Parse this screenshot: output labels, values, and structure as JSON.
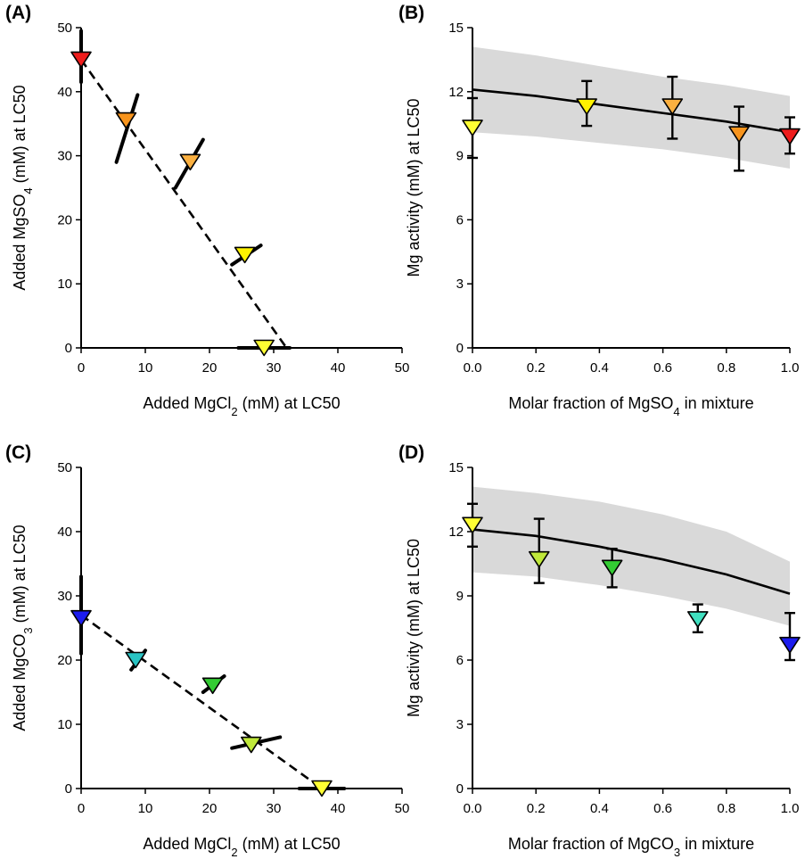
{
  "figure": {
    "panels": [
      {
        "id": "A",
        "panel_label": "(A)",
        "ylabel": "Added MgSO₄ (mM) at LC50",
        "xlabel": "Added MgCl₂ (mM) at LC50"
      },
      {
        "id": "B",
        "panel_label": "(B)",
        "ylabel": "Mg activity (mM) at LC50",
        "xlabel": "Molar fraction of MgSO₄ in mixture"
      },
      {
        "id": "C",
        "panel_label": "(C)",
        "ylabel": "Added MgCO₃ (mM) at LC50",
        "xlabel": "Added MgCl₂ (mM) at LC50"
      },
      {
        "id": "D",
        "panel_label": "(D)",
        "ylabel": "Mg activity (mM) at LC50",
        "xlabel": "Molar fraction of MgCO₃ in mixture"
      }
    ]
  },
  "chart_data": [
    {
      "panel": "A",
      "type": "scatter",
      "xlabel": "Added MgCl₂ (mM) at LC50",
      "ylabel": "Added MgSO₄ (mM) at LC50",
      "xlim": [
        0,
        50
      ],
      "ylim": [
        0,
        50
      ],
      "xticks": [
        0,
        10,
        20,
        30,
        40,
        50
      ],
      "yticks": [
        0,
        10,
        20,
        30,
        40,
        50
      ],
      "marker": "triangle-down",
      "points": [
        {
          "x": 0,
          "y": 45,
          "color": "#ee1c1c",
          "interval": [
            [
              0,
              41.5
            ],
            [
              0,
              49.5
            ]
          ]
        },
        {
          "x": 7,
          "y": 35.5,
          "color": "#f7941d",
          "interval": [
            [
              5.5,
              29
            ],
            [
              8.8,
              39.5
            ]
          ]
        },
        {
          "x": 17,
          "y": 29,
          "color": "#fbb040",
          "interval": [
            [
              14.7,
              25
            ],
            [
              19,
              32.5
            ]
          ]
        },
        {
          "x": 25.5,
          "y": 14.5,
          "color": "#fff200",
          "interval": [
            [
              23.5,
              13
            ],
            [
              28,
              16
            ]
          ]
        },
        {
          "x": 28.5,
          "y": 0,
          "color": "#ffff33",
          "interval": [
            [
              24.5,
              0
            ],
            [
              32.5,
              0
            ]
          ]
        }
      ],
      "reference_line": {
        "style": "dashed",
        "from": [
          0,
          45
        ],
        "to": [
          32,
          0
        ]
      }
    },
    {
      "panel": "B",
      "type": "scatter",
      "xlabel": "Molar fraction of MgSO₄ in mixture",
      "ylabel": "Mg activity (mM) at LC50",
      "xlim": [
        0,
        1
      ],
      "ylim": [
        0,
        15
      ],
      "xticks": [
        "0.0",
        "0.2",
        "0.4",
        "0.6",
        "0.8",
        "1.0"
      ],
      "yticks": [
        0,
        3,
        6,
        9,
        12,
        15
      ],
      "marker": "triangle-down",
      "points": [
        {
          "x": 0.0,
          "y": 10.3,
          "low": 8.9,
          "high": 11.7,
          "color": "#ffff33"
        },
        {
          "x": 0.36,
          "y": 11.3,
          "low": 10.4,
          "high": 12.5,
          "color": "#fff200"
        },
        {
          "x": 0.63,
          "y": 11.3,
          "low": 9.8,
          "high": 12.7,
          "color": "#fbb040"
        },
        {
          "x": 0.84,
          "y": 10.0,
          "low": 8.3,
          "high": 11.3,
          "color": "#f7941d"
        },
        {
          "x": 1.0,
          "y": 9.9,
          "low": 9.1,
          "high": 10.8,
          "color": "#ee1c1c"
        }
      ],
      "model_line": {
        "x": [
          0,
          0.2,
          0.4,
          0.6,
          0.8,
          1.0
        ],
        "y": [
          12.1,
          11.8,
          11.4,
          11.0,
          10.6,
          10.1
        ]
      },
      "band": {
        "x": [
          0,
          0.2,
          0.4,
          0.6,
          0.8,
          1.0
        ],
        "upper": [
          14.1,
          13.7,
          13.2,
          12.7,
          12.3,
          11.8
        ],
        "lower": [
          10.1,
          9.9,
          9.6,
          9.3,
          8.9,
          8.4
        ]
      }
    },
    {
      "panel": "C",
      "type": "scatter",
      "xlabel": "Added MgCl₂ (mM) at LC50",
      "ylabel": "Added MgCO₃ (mM) at LC50",
      "xlim": [
        0,
        50
      ],
      "ylim": [
        0,
        50
      ],
      "xticks": [
        0,
        10,
        20,
        30,
        40,
        50
      ],
      "yticks": [
        0,
        10,
        20,
        30,
        40,
        50
      ],
      "marker": "triangle-down",
      "points": [
        {
          "x": 0,
          "y": 26.5,
          "color": "#1c1cee",
          "interval": [
            [
              0,
              21
            ],
            [
              0,
              33
            ]
          ]
        },
        {
          "x": 8.5,
          "y": 20,
          "color": "#29c3c3",
          "interval": [
            [
              7.8,
              18.5
            ],
            [
              10,
              21.5
            ]
          ]
        },
        {
          "x": 20.5,
          "y": 16,
          "color": "#33cc33",
          "interval": [
            [
              19,
              15
            ],
            [
              22.3,
              17.5
            ]
          ]
        },
        {
          "x": 26.5,
          "y": 6.8,
          "color": "#bfe83a",
          "interval": [
            [
              23.5,
              6.3
            ],
            [
              31,
              8
            ]
          ]
        },
        {
          "x": 37.5,
          "y": 0,
          "color": "#ffff33",
          "interval": [
            [
              34,
              0
            ],
            [
              41,
              0
            ]
          ]
        }
      ],
      "reference_line": {
        "style": "dashed",
        "from": [
          0,
          27
        ],
        "to": [
          37.5,
          0
        ]
      }
    },
    {
      "panel": "D",
      "type": "scatter",
      "xlabel": "Molar fraction of MgCO₃ in mixture",
      "ylabel": "Mg activity (mM) at LC50",
      "xlim": [
        0,
        1
      ],
      "ylim": [
        0,
        15
      ],
      "xticks": [
        "0.0",
        "0.2",
        "0.4",
        "0.6",
        "0.8",
        "1.0"
      ],
      "yticks": [
        0,
        3,
        6,
        9,
        12,
        15
      ],
      "marker": "triangle-down",
      "points": [
        {
          "x": 0.0,
          "y": 12.3,
          "low": 11.3,
          "high": 13.3,
          "color": "#ffff33"
        },
        {
          "x": 0.21,
          "y": 10.7,
          "low": 9.6,
          "high": 12.6,
          "color": "#bfe83a"
        },
        {
          "x": 0.44,
          "y": 10.3,
          "low": 9.4,
          "high": 11.2,
          "color": "#33cc33"
        },
        {
          "x": 0.71,
          "y": 7.9,
          "low": 7.3,
          "high": 8.6,
          "color": "#40e0c0"
        },
        {
          "x": 1.0,
          "y": 6.7,
          "low": 6.0,
          "high": 8.2,
          "color": "#1c1cee"
        }
      ],
      "model_line": {
        "x": [
          0,
          0.2,
          0.4,
          0.6,
          0.8,
          1.0
        ],
        "y": [
          12.1,
          11.8,
          11.3,
          10.7,
          10.0,
          9.1
        ]
      },
      "band": {
        "x": [
          0,
          0.2,
          0.4,
          0.6,
          0.8,
          1.0
        ],
        "upper": [
          14.1,
          13.8,
          13.4,
          12.8,
          12.0,
          10.6
        ],
        "lower": [
          10.1,
          9.9,
          9.5,
          9.0,
          8.4,
          7.6
        ]
      }
    }
  ]
}
